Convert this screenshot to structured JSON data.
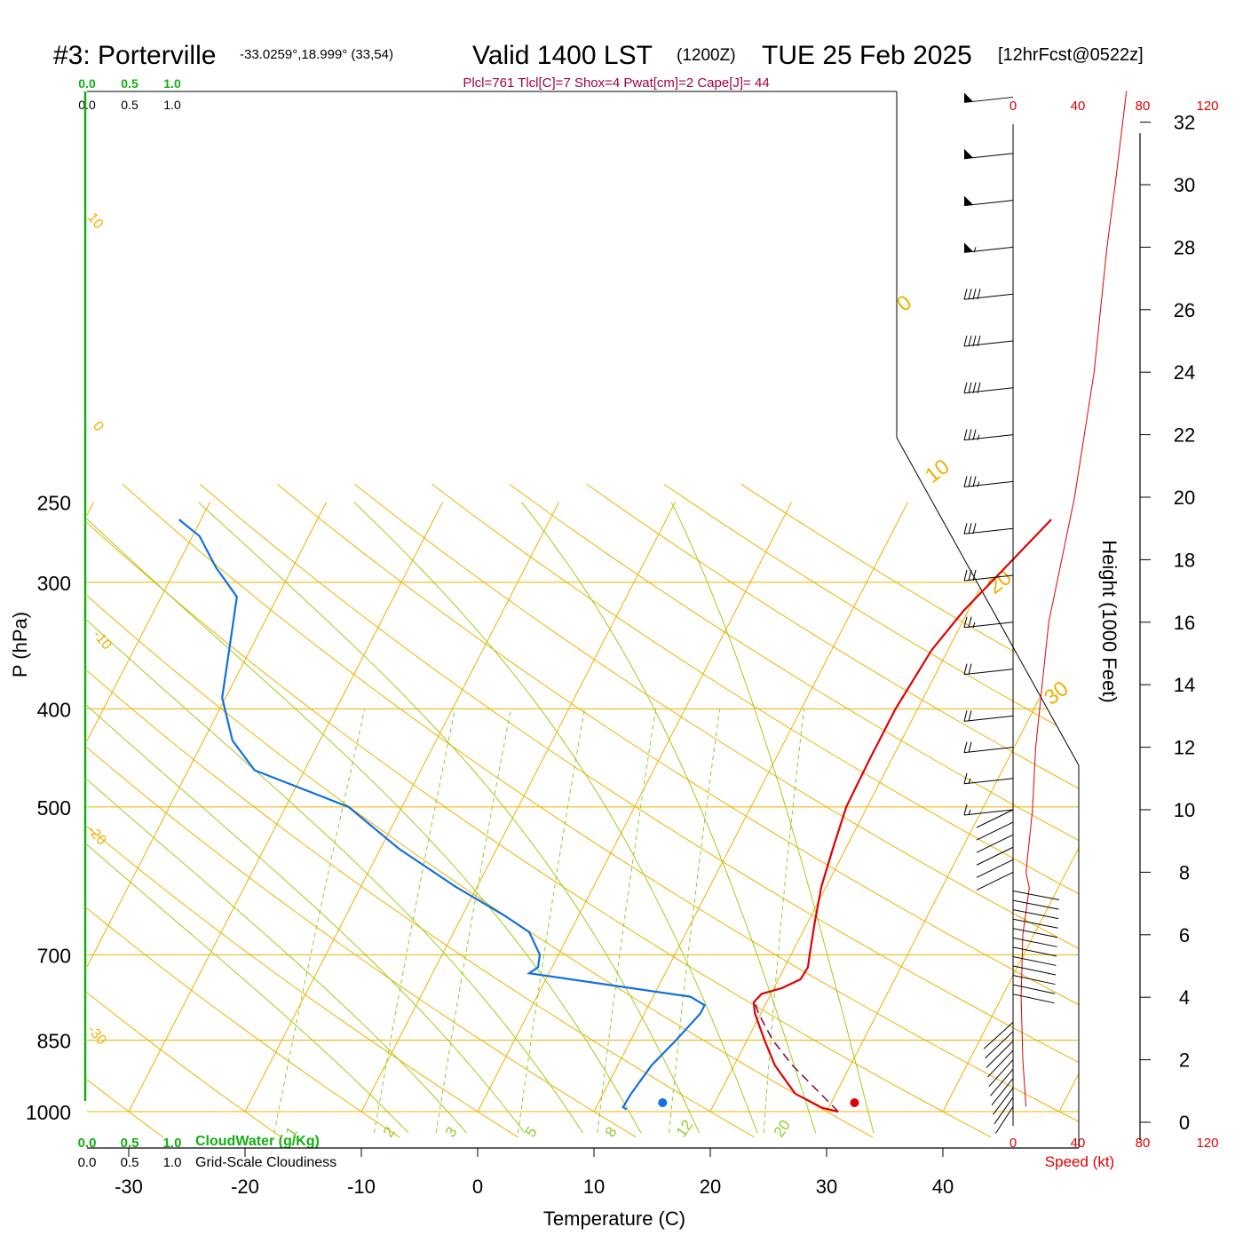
{
  "header": {
    "station": "#3: Porterville",
    "coords": "-33.0259°,18.999° (33,54)",
    "valid": "Valid 1400 LST",
    "zulu": "(1200Z)",
    "date": "TUE 25 Feb 2025",
    "forecast": "[12hrFcst@0522z]",
    "indices": "Plcl=761 Tlcl[C]=7 Shox=4 Pwat[cm]=2 Cape[J]= 44"
  },
  "scales": {
    "cloudwater_ticks": [
      "0.0",
      "0.5",
      "1.0"
    ],
    "cloudiness_ticks": [
      "0.0",
      "0.5",
      "1.0"
    ],
    "cloudwater_label": "CloudWater (g/Kg)",
    "cloudiness_label": "Grid-Scale Cloudiness",
    "speed_ticks": [
      "0",
      "40",
      "80",
      "120"
    ],
    "speed_label": "Speed (kt)"
  },
  "colors": {
    "temperature": "#e00000",
    "dewpoint": "#1070e0",
    "isotherm": "#f0b000",
    "dry_adiabat": "#f0b000",
    "moist_adiabat": "#a0cc20",
    "mixing_ratio": "#90cc30",
    "parcel": "#800050",
    "cloudwater": "#10b010",
    "header_indices": "#a0004a"
  },
  "chart_data": {
    "type": "skew-t",
    "xlabel": "Temperature (C)",
    "ylabel": "P (hPa)",
    "y2label": "Height (1000 Feet)",
    "x_ticks": [
      -30,
      -20,
      -10,
      0,
      10,
      20,
      30,
      40
    ],
    "y_ticks": [
      250,
      300,
      400,
      500,
      700,
      850,
      1000
    ],
    "height_ticks": [
      0,
      2,
      4,
      6,
      8,
      10,
      12,
      14,
      16,
      18,
      20,
      22,
      24,
      26,
      28,
      30,
      32
    ],
    "dry_adiabat_labels": [
      "10",
      "0",
      "-10",
      "-20",
      "-30"
    ],
    "moist_adiabat_labels": [
      "0",
      "10",
      "20",
      "30"
    ],
    "mixing_ratio_labels": [
      "1",
      "2",
      "3",
      "5",
      "8",
      "12",
      "20"
    ],
    "temperature": [
      {
        "p": 1000,
        "t": 31.0
      },
      {
        "p": 992,
        "t": 29.5
      },
      {
        "p": 960,
        "t": 26.5
      },
      {
        "p": 900,
        "t": 23.5
      },
      {
        "p": 850,
        "t": 21.5
      },
      {
        "p": 800,
        "t": 19.5
      },
      {
        "p": 780,
        "t": 18.9
      },
      {
        "p": 765,
        "t": 19.2
      },
      {
        "p": 755,
        "t": 20.7
      },
      {
        "p": 740,
        "t": 21.9
      },
      {
        "p": 720,
        "t": 22.0
      },
      {
        "p": 700,
        "t": 21.6
      },
      {
        "p": 650,
        "t": 20.6
      },
      {
        "p": 600,
        "t": 19.6
      },
      {
        "p": 550,
        "t": 18.9
      },
      {
        "p": 500,
        "t": 18.2
      },
      {
        "p": 450,
        "t": 18.1
      },
      {
        "p": 400,
        "t": 18.1
      },
      {
        "p": 350,
        "t": 18.6
      },
      {
        "p": 320,
        "t": 19.6
      },
      {
        "p": 300,
        "t": 20.7
      },
      {
        "p": 260,
        "t": 23.1
      }
    ],
    "dewpoint": [
      {
        "p": 995,
        "t": 12.7
      },
      {
        "p": 990,
        "t": 12.3
      },
      {
        "p": 960,
        "t": 12.4
      },
      {
        "p": 900,
        "t": 12.9
      },
      {
        "p": 850,
        "t": 13.9
      },
      {
        "p": 800,
        "t": 14.8
      },
      {
        "p": 785,
        "t": 14.8
      },
      {
        "p": 770,
        "t": 13.2
      },
      {
        "p": 730,
        "t": -1.7
      },
      {
        "p": 720,
        "t": -1.2
      },
      {
        "p": 700,
        "t": -1.6
      },
      {
        "p": 665,
        "t": -3.5
      },
      {
        "p": 640,
        "t": -6.4
      },
      {
        "p": 600,
        "t": -11.8
      },
      {
        "p": 550,
        "t": -18.4
      },
      {
        "p": 500,
        "t": -24.6
      },
      {
        "p": 460,
        "t": -34.3
      },
      {
        "p": 430,
        "t": -37.5
      },
      {
        "p": 390,
        "t": -40.3
      },
      {
        "p": 340,
        "t": -42.2
      },
      {
        "p": 310,
        "t": -43.5
      },
      {
        "p": 290,
        "t": -46.6
      },
      {
        "p": 270,
        "t": -49.4
      },
      {
        "p": 260,
        "t": -51.9
      }
    ],
    "parcel": [
      {
        "p": 1000,
        "t": 31.0
      },
      {
        "p": 900,
        "t": 25.0
      },
      {
        "p": 850,
        "t": 22.2
      },
      {
        "p": 800,
        "t": 19.8
      },
      {
        "p": 780,
        "t": 19.0
      }
    ],
    "surface_temperature": 32.4,
    "surface_dewpoint": 15.9,
    "wind_speed_profile": [
      {
        "h": 0.5,
        "kt": 8
      },
      {
        "h": 2,
        "kt": 6
      },
      {
        "h": 4,
        "kt": 5
      },
      {
        "h": 6,
        "kt": 6
      },
      {
        "h": 7.5,
        "kt": 10
      },
      {
        "h": 8,
        "kt": 8
      },
      {
        "h": 10,
        "kt": 12
      },
      {
        "h": 12,
        "kt": 14
      },
      {
        "h": 14,
        "kt": 18
      },
      {
        "h": 16,
        "kt": 22
      },
      {
        "h": 18,
        "kt": 30
      },
      {
        "h": 20,
        "kt": 38
      },
      {
        "h": 22,
        "kt": 44
      },
      {
        "h": 24,
        "kt": 50
      },
      {
        "h": 26,
        "kt": 54
      },
      {
        "h": 28,
        "kt": 58
      },
      {
        "h": 30,
        "kt": 63
      },
      {
        "h": 33,
        "kt": 70
      }
    ],
    "wind_barbs": [
      {
        "h": 32.8,
        "kt": 50
      },
      {
        "h": 31.0,
        "kt": 50
      },
      {
        "h": 29.5,
        "kt": 50
      },
      {
        "h": 28.0,
        "kt": 55
      },
      {
        "h": 26.5,
        "kt": 40
      },
      {
        "h": 25.0,
        "kt": 40
      },
      {
        "h": 23.5,
        "kt": 40
      },
      {
        "h": 22.0,
        "kt": 35
      },
      {
        "h": 20.5,
        "kt": 35
      },
      {
        "h": 19.0,
        "kt": 30
      },
      {
        "h": 17.5,
        "kt": 30
      },
      {
        "h": 16.0,
        "kt": 25
      },
      {
        "h": 14.5,
        "kt": 20
      },
      {
        "h": 13.0,
        "kt": 20
      },
      {
        "h": 12.0,
        "kt": 20
      },
      {
        "h": 11.0,
        "kt": 15
      },
      {
        "h": 10.0,
        "kt": 15
      }
    ]
  }
}
